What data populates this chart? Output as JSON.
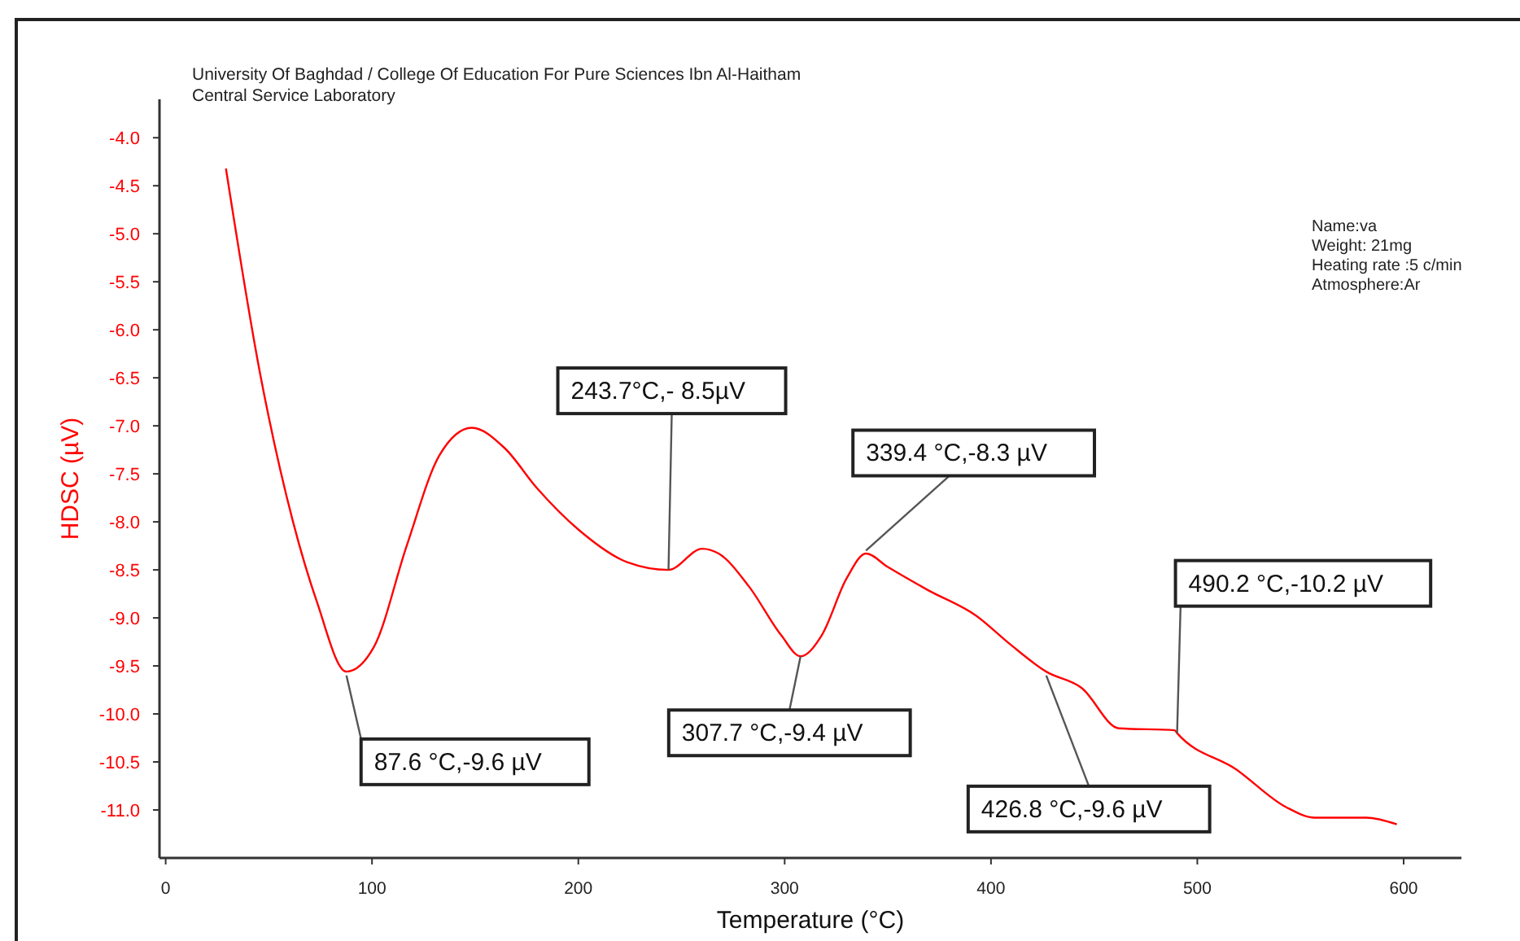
{
  "chart_data": {
    "type": "line",
    "title": "University Of Baghdad / College Of Education For Pure Sciences Ibn Al-Haitham",
    "subtitle": "Central Service Laboratory",
    "xlabel": "Temperature (°C)",
    "ylabel": "HDSC (µV)",
    "x": [
      29.2,
      45.8,
      61.6,
      73.4,
      87.6,
      101,
      116.8,
      132.6,
      148.4,
      164.2,
      180,
      200,
      223.7,
      243.7,
      260,
      268,
      282.6,
      298.3,
      307.7,
      318,
      330,
      339.4,
      350,
      369.4,
      393,
      409,
      426.8,
      444,
      462,
      489,
      490.2,
      519,
      543,
      557,
      582,
      596.7
    ],
    "series": [
      {
        "color": "#ff0000",
        "values": [
          -4.32,
          -6.46,
          -7.99,
          -8.84,
          -9.56,
          -9.3,
          -8.25,
          -7.31,
          -7.02,
          -7.23,
          -7.65,
          -8.08,
          -8.42,
          -8.5,
          -8.28,
          -8.33,
          -8.67,
          -9.18,
          -9.4,
          -9.18,
          -8.59,
          -8.33,
          -8.47,
          -8.71,
          -8.98,
          -9.27,
          -9.56,
          -9.73,
          -10.15,
          -10.17,
          -10.2,
          -10.58,
          -10.97,
          -11.08,
          -11.08,
          -11.15
        ]
      }
    ],
    "xlim": [
      -3,
      628
    ],
    "ylim": [
      -11.5,
      -3.6
    ],
    "xticks": [
      0,
      100,
      200,
      300,
      400,
      500,
      600
    ],
    "yticks": [
      {
        "value": -4,
        "label": "-4.0"
      },
      {
        "value": -4.5,
        "label": "-4.5"
      },
      {
        "value": -5,
        "label": "-5.0"
      },
      {
        "value": -5.5,
        "label": "-5.5"
      },
      {
        "value": -6,
        "label": "-6.0"
      },
      {
        "value": -6.5,
        "label": "-6.5"
      },
      {
        "value": -7,
        "label": "-7.0"
      },
      {
        "value": -7.5,
        "label": "-7.5"
      },
      {
        "value": -8,
        "label": "-8.0"
      },
      {
        "value": -8.5,
        "label": "-8.5"
      },
      {
        "value": -9,
        "label": "-9.0"
      },
      {
        "value": -9.5,
        "label": "-9.5"
      },
      {
        "value": -10,
        "label": "-10.0"
      },
      {
        "value": -10.5,
        "label": "-10.5"
      },
      {
        "value": -11,
        "label": "-11.0"
      }
    ],
    "marker": "none",
    "line_style": "solid",
    "annotations": [
      {
        "text": "87.6 °C,-9.6 µV",
        "x": 87.6,
        "y": -9.6
      },
      {
        "text": "243.7°C,- 8.5µV",
        "x": 243.7,
        "y": -8.5
      },
      {
        "text": "307.7 °C,-9.4 µV",
        "x": 307.7,
        "y": -9.4
      },
      {
        "text": "339.4 °C,-8.3 µV",
        "x": 339.4,
        "y": -8.3
      },
      {
        "text": "426.8 °C,-9.6 µV",
        "x": 426.8,
        "y": -9.6
      },
      {
        "text": "490.2 °C,-10.2 µV",
        "x": 490.2,
        "y": -10.2
      },
      "Name:va",
      "Weight: 21mg",
      "Heating rate :5 c/min",
      "Atmosphere:Ar"
    ]
  }
}
